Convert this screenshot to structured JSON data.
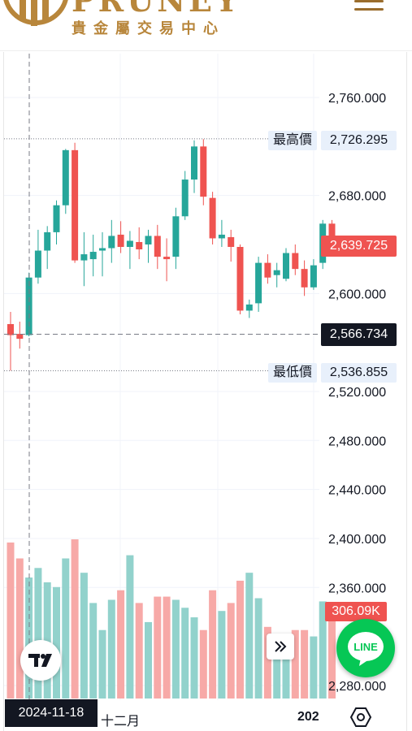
{
  "header": {
    "logo_text": "PRUNEY",
    "logo_subtitle": "貴金屬交易中心",
    "menu_icon": "hamburger-menu-icon"
  },
  "chart_data": {
    "type": "candlestick",
    "y_ticks": [
      "2,760.000",
      "2,680.000",
      "2,600.000",
      "2,520.000",
      "2,480.000",
      "2,440.000",
      "2,400.000",
      "2,360.000",
      "2,280.000"
    ],
    "y_tick_values": [
      2760,
      2680,
      2600,
      2520,
      2480,
      2440,
      2400,
      2360,
      2280
    ],
    "x_ticks": [
      "十二月",
      "202"
    ],
    "crosshair_date": "2024-11-18",
    "crosshair_price": "2,566.734",
    "high_label": "最高價",
    "high_value": "2,726.295",
    "low_label": "最低價",
    "low_value": "2,536.855",
    "last_price": "2,639.725",
    "last_volume": "306.09K",
    "colors": {
      "up": "#26a69a",
      "down": "#ef5350",
      "up_volume": "#92d2cc",
      "down_volume": "#f7a9a7"
    },
    "candles": [
      {
        "o": 2575,
        "h": 2585,
        "l": 2537,
        "c": 2566,
        "v": 0.98
      },
      {
        "o": 2567,
        "h": 2577,
        "l": 2555,
        "c": 2563,
        "v": 0.88
      },
      {
        "o": 2566,
        "h": 2617,
        "l": 2565,
        "c": 2613,
        "v": 0.76
      },
      {
        "o": 2613,
        "h": 2652,
        "l": 2608,
        "c": 2635,
        "v": 0.82
      },
      {
        "o": 2635,
        "h": 2655,
        "l": 2620,
        "c": 2650,
        "v": 0.73
      },
      {
        "o": 2650,
        "h": 2676,
        "l": 2640,
        "c": 2672,
        "v": 0.7
      },
      {
        "o": 2672,
        "h": 2718,
        "l": 2665,
        "c": 2717,
        "v": 0.88
      },
      {
        "o": 2717,
        "h": 2723,
        "l": 2625,
        "c": 2627,
        "v": 1.0
      },
      {
        "o": 2627,
        "h": 2650,
        "l": 2606,
        "c": 2632,
        "v": 0.79
      },
      {
        "o": 2628,
        "h": 2648,
        "l": 2614,
        "c": 2634,
        "v": 0.6
      },
      {
        "o": 2635,
        "h": 2650,
        "l": 2614,
        "c": 2637,
        "v": 0.43
      },
      {
        "o": 2637,
        "h": 2660,
        "l": 2625,
        "c": 2647,
        "v": 0.62
      },
      {
        "o": 2648,
        "h": 2659,
        "l": 2633,
        "c": 2638,
        "v": 0.68
      },
      {
        "o": 2638,
        "h": 2651,
        "l": 2620,
        "c": 2643,
        "v": 0.9
      },
      {
        "o": 2642,
        "h": 2654,
        "l": 2628,
        "c": 2636,
        "v": 0.6
      },
      {
        "o": 2640,
        "h": 2652,
        "l": 2625,
        "c": 2647,
        "v": 0.48
      },
      {
        "o": 2647,
        "h": 2656,
        "l": 2620,
        "c": 2630,
        "v": 0.64
      },
      {
        "o": 2630,
        "h": 2645,
        "l": 2610,
        "c": 2628,
        "v": 0.64
      },
      {
        "o": 2630,
        "h": 2670,
        "l": 2620,
        "c": 2663,
        "v": 0.62
      },
      {
        "o": 2663,
        "h": 2700,
        "l": 2660,
        "c": 2693,
        "v": 0.57
      },
      {
        "o": 2693,
        "h": 2725,
        "l": 2682,
        "c": 2720,
        "v": 0.51
      },
      {
        "o": 2720,
        "h": 2726,
        "l": 2672,
        "c": 2679,
        "v": 0.43
      },
      {
        "o": 2678,
        "h": 2683,
        "l": 2640,
        "c": 2645,
        "v": 0.68
      },
      {
        "o": 2645,
        "h": 2660,
        "l": 2638,
        "c": 2648,
        "v": 0.55
      },
      {
        "o": 2646,
        "h": 2652,
        "l": 2626,
        "c": 2638,
        "v": 0.6
      },
      {
        "o": 2638,
        "h": 2640,
        "l": 2583,
        "c": 2586,
        "v": 0.74
      },
      {
        "o": 2586,
        "h": 2595,
        "l": 2580,
        "c": 2591,
        "v": 0.79
      },
      {
        "o": 2592,
        "h": 2630,
        "l": 2585,
        "c": 2625,
        "v": 0.63
      },
      {
        "o": 2625,
        "h": 2632,
        "l": 2608,
        "c": 2613,
        "v": 0.45
      },
      {
        "o": 2615,
        "h": 2625,
        "l": 2605,
        "c": 2619,
        "v": 0.4
      },
      {
        "o": 2612,
        "h": 2637,
        "l": 2610,
        "c": 2633,
        "v": 0.36
      },
      {
        "o": 2633,
        "h": 2640,
        "l": 2615,
        "c": 2620,
        "v": 0.43
      },
      {
        "o": 2620,
        "h": 2627,
        "l": 2598,
        "c": 2605,
        "v": 0.43
      },
      {
        "o": 2605,
        "h": 2628,
        "l": 2603,
        "c": 2623,
        "v": 0.39
      },
      {
        "o": 2625,
        "h": 2660,
        "l": 2620,
        "c": 2657,
        "v": 0.61
      },
      {
        "o": 2657,
        "h": 2660,
        "l": 2635,
        "c": 2640,
        "v": 0.5
      }
    ]
  }
}
